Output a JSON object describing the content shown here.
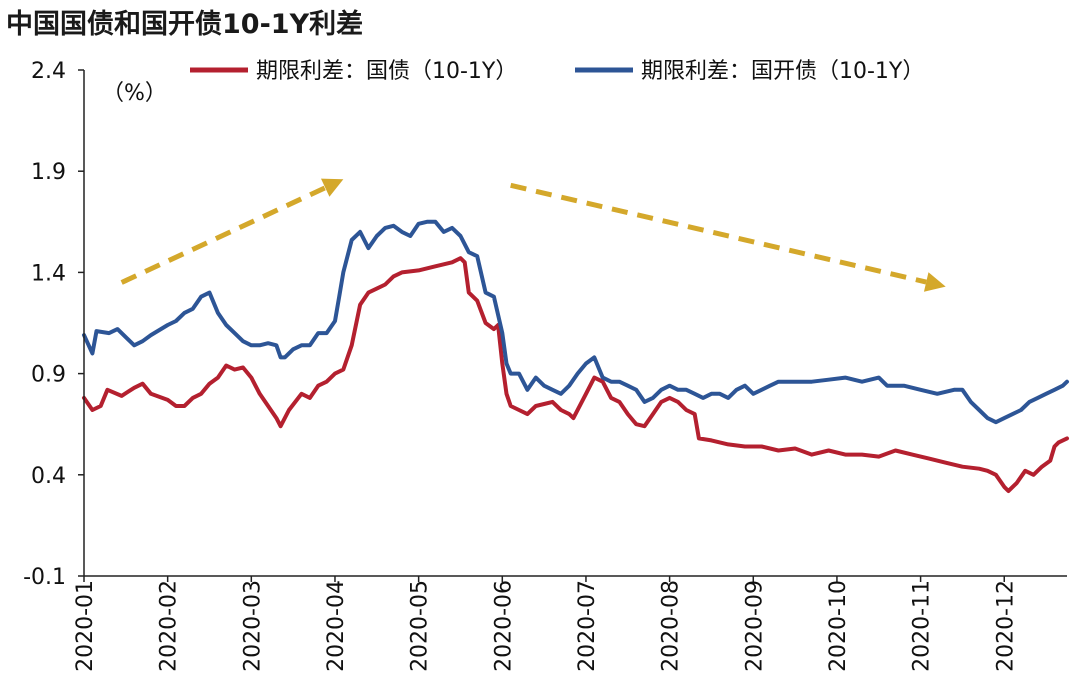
{
  "chart_data": {
    "type": "line",
    "title": "中国国债和国开债10-1Y利差",
    "unit_label": "（%）",
    "ylim": [
      -0.1,
      2.4
    ],
    "yticks": [
      "2.4",
      "1.9",
      "1.4",
      "0.9",
      "0.4",
      "-0.1"
    ],
    "ytick_values": [
      2.4,
      1.9,
      1.4,
      0.9,
      0.4,
      -0.1
    ],
    "categories": [
      "2020-01",
      "2020-02",
      "2020-03",
      "2020-04",
      "2020-05",
      "2020-06",
      "2020-07",
      "2020-08",
      "2020-09",
      "2020-10",
      "2020-11",
      "2020-12"
    ],
    "xlim": [
      0,
      11.75
    ],
    "grid": false,
    "legend_position": "top",
    "series": [
      {
        "name": "期限利差：国债（10-1Y）",
        "color": "#b4202f",
        "points": [
          [
            0.0,
            0.78
          ],
          [
            0.1,
            0.72
          ],
          [
            0.2,
            0.74
          ],
          [
            0.28,
            0.82
          ],
          [
            0.45,
            0.79
          ],
          [
            0.6,
            0.83
          ],
          [
            0.7,
            0.85
          ],
          [
            0.8,
            0.8
          ],
          [
            1.0,
            0.77
          ],
          [
            1.1,
            0.74
          ],
          [
            1.2,
            0.74
          ],
          [
            1.3,
            0.78
          ],
          [
            1.4,
            0.8
          ],
          [
            1.5,
            0.85
          ],
          [
            1.6,
            0.88
          ],
          [
            1.7,
            0.94
          ],
          [
            1.8,
            0.92
          ],
          [
            1.9,
            0.93
          ],
          [
            2.0,
            0.88
          ],
          [
            2.1,
            0.8
          ],
          [
            2.2,
            0.74
          ],
          [
            2.3,
            0.68
          ],
          [
            2.35,
            0.64
          ],
          [
            2.45,
            0.72
          ],
          [
            2.6,
            0.8
          ],
          [
            2.7,
            0.78
          ],
          [
            2.8,
            0.84
          ],
          [
            2.9,
            0.86
          ],
          [
            3.0,
            0.9
          ],
          [
            3.1,
            0.92
          ],
          [
            3.2,
            1.04
          ],
          [
            3.3,
            1.24
          ],
          [
            3.4,
            1.3
          ],
          [
            3.5,
            1.32
          ],
          [
            3.6,
            1.34
          ],
          [
            3.7,
            1.38
          ],
          [
            3.8,
            1.4
          ],
          [
            4.0,
            1.41
          ],
          [
            4.2,
            1.43
          ],
          [
            4.4,
            1.45
          ],
          [
            4.5,
            1.47
          ],
          [
            4.55,
            1.45
          ],
          [
            4.6,
            1.3
          ],
          [
            4.7,
            1.26
          ],
          [
            4.8,
            1.15
          ],
          [
            4.9,
            1.12
          ],
          [
            4.95,
            1.14
          ],
          [
            5.0,
            0.95
          ],
          [
            5.05,
            0.8
          ],
          [
            5.1,
            0.74
          ],
          [
            5.2,
            0.72
          ],
          [
            5.3,
            0.7
          ],
          [
            5.4,
            0.74
          ],
          [
            5.5,
            0.75
          ],
          [
            5.6,
            0.76
          ],
          [
            5.7,
            0.72
          ],
          [
            5.8,
            0.7
          ],
          [
            5.85,
            0.68
          ],
          [
            6.0,
            0.8
          ],
          [
            6.1,
            0.88
          ],
          [
            6.2,
            0.86
          ],
          [
            6.3,
            0.78
          ],
          [
            6.4,
            0.76
          ],
          [
            6.5,
            0.7
          ],
          [
            6.6,
            0.65
          ],
          [
            6.7,
            0.64
          ],
          [
            6.8,
            0.7
          ],
          [
            6.9,
            0.76
          ],
          [
            7.0,
            0.78
          ],
          [
            7.1,
            0.76
          ],
          [
            7.2,
            0.72
          ],
          [
            7.3,
            0.7
          ],
          [
            7.35,
            0.58
          ],
          [
            7.5,
            0.57
          ],
          [
            7.7,
            0.55
          ],
          [
            7.9,
            0.54
          ],
          [
            8.1,
            0.54
          ],
          [
            8.3,
            0.52
          ],
          [
            8.5,
            0.53
          ],
          [
            8.7,
            0.5
          ],
          [
            8.9,
            0.52
          ],
          [
            9.1,
            0.5
          ],
          [
            9.3,
            0.5
          ],
          [
            9.5,
            0.49
          ],
          [
            9.7,
            0.52
          ],
          [
            9.9,
            0.5
          ],
          [
            10.1,
            0.48
          ],
          [
            10.3,
            0.46
          ],
          [
            10.5,
            0.44
          ],
          [
            10.7,
            0.43
          ],
          [
            10.8,
            0.42
          ],
          [
            10.9,
            0.4
          ],
          [
            11.0,
            0.34
          ],
          [
            11.05,
            0.32
          ],
          [
            11.15,
            0.36
          ],
          [
            11.25,
            0.42
          ],
          [
            11.35,
            0.4
          ],
          [
            11.45,
            0.44
          ],
          [
            11.55,
            0.47
          ],
          [
            11.6,
            0.54
          ],
          [
            11.65,
            0.56
          ],
          [
            11.75,
            0.58
          ]
        ]
      },
      {
        "name": "期限利差：国开债（10-1Y）",
        "color": "#2d5596",
        "points": [
          [
            0.0,
            1.09
          ],
          [
            0.1,
            1.0
          ],
          [
            0.15,
            1.11
          ],
          [
            0.3,
            1.1
          ],
          [
            0.4,
            1.12
          ],
          [
            0.5,
            1.08
          ],
          [
            0.6,
            1.04
          ],
          [
            0.7,
            1.06
          ],
          [
            0.8,
            1.09
          ],
          [
            1.0,
            1.14
          ],
          [
            1.1,
            1.16
          ],
          [
            1.2,
            1.2
          ],
          [
            1.3,
            1.22
          ],
          [
            1.4,
            1.28
          ],
          [
            1.5,
            1.3
          ],
          [
            1.6,
            1.2
          ],
          [
            1.7,
            1.14
          ],
          [
            1.8,
            1.1
          ],
          [
            1.9,
            1.06
          ],
          [
            2.0,
            1.04
          ],
          [
            2.1,
            1.04
          ],
          [
            2.2,
            1.05
          ],
          [
            2.3,
            1.04
          ],
          [
            2.35,
            0.98
          ],
          [
            2.4,
            0.98
          ],
          [
            2.5,
            1.02
          ],
          [
            2.6,
            1.04
          ],
          [
            2.7,
            1.04
          ],
          [
            2.8,
            1.1
          ],
          [
            2.9,
            1.1
          ],
          [
            3.0,
            1.16
          ],
          [
            3.05,
            1.28
          ],
          [
            3.1,
            1.4
          ],
          [
            3.2,
            1.56
          ],
          [
            3.3,
            1.6
          ],
          [
            3.4,
            1.52
          ],
          [
            3.5,
            1.58
          ],
          [
            3.6,
            1.62
          ],
          [
            3.7,
            1.63
          ],
          [
            3.8,
            1.6
          ],
          [
            3.9,
            1.58
          ],
          [
            4.0,
            1.64
          ],
          [
            4.1,
            1.65
          ],
          [
            4.2,
            1.65
          ],
          [
            4.3,
            1.6
          ],
          [
            4.4,
            1.62
          ],
          [
            4.5,
            1.58
          ],
          [
            4.6,
            1.5
          ],
          [
            4.7,
            1.48
          ],
          [
            4.8,
            1.3
          ],
          [
            4.9,
            1.28
          ],
          [
            5.0,
            1.1
          ],
          [
            5.05,
            0.95
          ],
          [
            5.1,
            0.9
          ],
          [
            5.2,
            0.9
          ],
          [
            5.3,
            0.82
          ],
          [
            5.4,
            0.88
          ],
          [
            5.5,
            0.84
          ],
          [
            5.6,
            0.82
          ],
          [
            5.7,
            0.8
          ],
          [
            5.8,
            0.84
          ],
          [
            5.9,
            0.9
          ],
          [
            6.0,
            0.95
          ],
          [
            6.1,
            0.98
          ],
          [
            6.2,
            0.88
          ],
          [
            6.3,
            0.86
          ],
          [
            6.4,
            0.86
          ],
          [
            6.5,
            0.84
          ],
          [
            6.6,
            0.82
          ],
          [
            6.7,
            0.76
          ],
          [
            6.8,
            0.78
          ],
          [
            6.9,
            0.82
          ],
          [
            7.0,
            0.84
          ],
          [
            7.1,
            0.82
          ],
          [
            7.2,
            0.82
          ],
          [
            7.3,
            0.8
          ],
          [
            7.4,
            0.78
          ],
          [
            7.5,
            0.8
          ],
          [
            7.6,
            0.8
          ],
          [
            7.7,
            0.78
          ],
          [
            7.8,
            0.82
          ],
          [
            7.9,
            0.84
          ],
          [
            8.0,
            0.8
          ],
          [
            8.1,
            0.82
          ],
          [
            8.2,
            0.84
          ],
          [
            8.3,
            0.86
          ],
          [
            8.5,
            0.86
          ],
          [
            8.7,
            0.86
          ],
          [
            8.9,
            0.87
          ],
          [
            9.1,
            0.88
          ],
          [
            9.3,
            0.86
          ],
          [
            9.5,
            0.88
          ],
          [
            9.6,
            0.84
          ],
          [
            9.7,
            0.84
          ],
          [
            9.8,
            0.84
          ],
          [
            10.0,
            0.82
          ],
          [
            10.2,
            0.8
          ],
          [
            10.4,
            0.82
          ],
          [
            10.5,
            0.82
          ],
          [
            10.6,
            0.76
          ],
          [
            10.7,
            0.72
          ],
          [
            10.8,
            0.68
          ],
          [
            10.9,
            0.66
          ],
          [
            11.0,
            0.68
          ],
          [
            11.1,
            0.7
          ],
          [
            11.2,
            0.72
          ],
          [
            11.3,
            0.76
          ],
          [
            11.4,
            0.78
          ],
          [
            11.5,
            0.8
          ],
          [
            11.6,
            0.82
          ],
          [
            11.7,
            0.84
          ],
          [
            11.75,
            0.86
          ]
        ]
      }
    ],
    "trend_arrows": {
      "color": "#d4a82b",
      "up": {
        "from": [
          0.45,
          1.35
        ],
        "to": [
          3.1,
          1.86
        ]
      },
      "down": {
        "from": [
          5.1,
          1.83
        ],
        "to": [
          10.3,
          1.33
        ]
      }
    }
  }
}
